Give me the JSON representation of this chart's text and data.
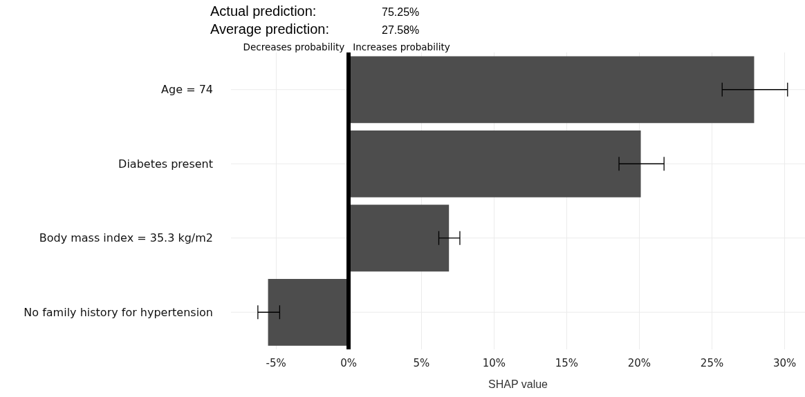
{
  "chart_data": {
    "type": "bar",
    "orientation": "horizontal",
    "xlabel": "SHAP value",
    "categories": [
      "Age = 74",
      "Diabetes present",
      "Body mass index = 35.3 kg/m2",
      "No family history for hypertension"
    ],
    "values": [
      27.9,
      20.1,
      6.9,
      -5.55
    ],
    "errors": [
      [
        25.7,
        30.2
      ],
      [
        18.6,
        21.7
      ],
      [
        6.2,
        7.65
      ],
      [
        -6.25,
        -4.75
      ]
    ],
    "color": "#4d4d4d",
    "xlim": [
      -8.1,
      31.4
    ],
    "xticks": [
      {
        "value": -5,
        "label": "-5%"
      },
      {
        "value": 0,
        "label": "0%"
      },
      {
        "value": 5,
        "label": "5%"
      },
      {
        "value": 10,
        "label": "10%"
      },
      {
        "value": 15,
        "label": "15%"
      },
      {
        "value": 20,
        "label": "20%"
      },
      {
        "value": 25,
        "label": "25%"
      },
      {
        "value": 30,
        "label": "30%"
      }
    ],
    "ref_lines": [
      {
        "axis": "x",
        "value": 0,
        "color": "#000000"
      }
    ],
    "annotations": [
      "Actual prediction:",
      "75.25%",
      "Average prediction:",
      "27.58%",
      "Decreases probability",
      "Increases probability"
    ],
    "grid": true
  }
}
